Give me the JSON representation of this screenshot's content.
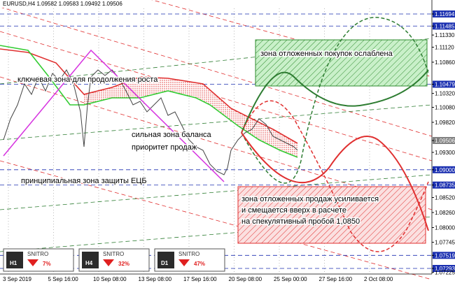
{
  "header": {
    "title": "EURUSD,H4  1.09582 1.09583 1.09492 1.09506"
  },
  "price_axis": [
    {
      "value": 1.11694,
      "label": "1.11694",
      "boxed": true
    },
    {
      "value": 1.11485,
      "label": "1.11485",
      "boxed": true
    },
    {
      "value": 1.1133,
      "label": "1.11330"
    },
    {
      "value": 1.1112,
      "label": "1.11120"
    },
    {
      "value": 1.1086,
      "label": "1.10860"
    },
    {
      "value": 1.10479,
      "label": "1.10479",
      "boxed": true
    },
    {
      "value": 1.1032,
      "label": "1.10320"
    },
    {
      "value": 1.1008,
      "label": "1.10080"
    },
    {
      "value": 1.0982,
      "label": "1.09820"
    },
    {
      "value": 1.09506,
      "label": "1.09506",
      "current": true
    },
    {
      "value": 1.093,
      "label": "1.09300"
    },
    {
      "value": 1.09,
      "label": "1.09000",
      "boxed": true
    },
    {
      "value": 1.08735,
      "label": "1.08735",
      "boxed": true
    },
    {
      "value": 1.0852,
      "label": "1.08520"
    },
    {
      "value": 1.0826,
      "label": "1.08260"
    },
    {
      "value": 1.08,
      "label": "1.08000"
    },
    {
      "value": 1.07745,
      "label": "1.07745"
    },
    {
      "value": 1.07519,
      "label": "1.07519",
      "boxed": true
    },
    {
      "value": 1.07293,
      "label": "1.07293",
      "boxed": true
    },
    {
      "value": 1.07225,
      "label": "1.07225"
    }
  ],
  "time_axis": [
    "3 Sep 2019",
    "5 Sep 16:00",
    "10 Sep 08:00",
    "13 Sep 08:00",
    "17 Sep 16:00",
    "20 Sep 08:00",
    "25 Sep 00:00",
    "27 Sep 16:00",
    "2 Oct 08:00"
  ],
  "annotations": {
    "buy_zone": "зона отложенных покупок ослаблена",
    "key_zone": "ключевая зона для продолжения роста",
    "balance_1": "сильная зона баланса",
    "balance_2": "приоритет продаж",
    "ecb_zone": "принципиальная зона защиты ЕЦБ",
    "sell_zone_1": "зона отложенных продаж усиливается",
    "sell_zone_2": "и смещается вверх в расчете",
    "sell_zone_3": "на спекулятивный пробой 1,0850"
  },
  "widgets": [
    {
      "timeframe": "H1",
      "brand": "SNITRO",
      "percent": "7%"
    },
    {
      "timeframe": "H4",
      "brand": "SNITRO",
      "percent": "32%"
    },
    {
      "timeframe": "D1",
      "brand": "SNITRO",
      "percent": "47%"
    }
  ]
}
